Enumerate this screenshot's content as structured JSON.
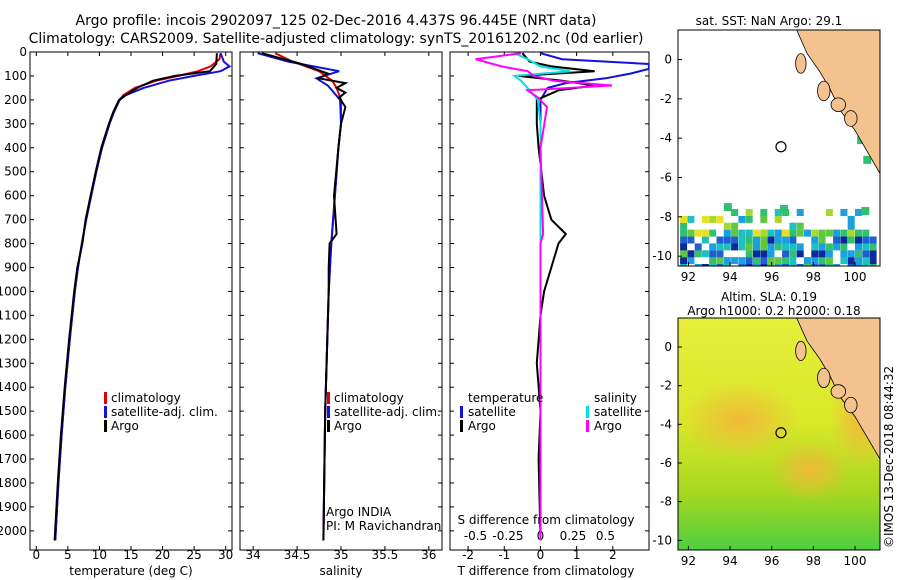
{
  "title": {
    "line1": "Argo profile: incois 2902097_125 02-Dec-2016 4.437S 96.445E (NRT data)",
    "line2": "Climatology: CARS2009. Satellite-adjusted climatology: synTS_20161202.nc (0d earlier)"
  },
  "colors": {
    "climatology": "#e00000",
    "satellite": "#1010e0",
    "argo": "#000000",
    "sat_salinity": "#00e0e0",
    "argo_salinity": "#ff00ff",
    "land": "#f3c28f"
  },
  "chart_data": [
    {
      "id": "temperature",
      "type": "line",
      "xlabel": "temperature (deg C)",
      "ylabel": "",
      "xlim": [
        -1,
        31
      ],
      "ylim": [
        2080,
        0
      ],
      "xticks": [
        0,
        5,
        10,
        15,
        20,
        25,
        30
      ],
      "yticks": [
        0,
        100,
        200,
        300,
        400,
        500,
        600,
        700,
        800,
        900,
        1000,
        1100,
        1200,
        1300,
        1400,
        1500,
        1600,
        1700,
        1800,
        1900,
        2000
      ],
      "legend": [
        "climatology",
        "satellite-adj. clim.",
        "Argo"
      ],
      "series": [
        {
          "name": "climatology",
          "depth": [
            5,
            30,
            60,
            80,
            100,
            120,
            150,
            180,
            200,
            250,
            300,
            400,
            500,
            600,
            700,
            800,
            900,
            1000,
            1200,
            1400,
            1600,
            1800,
            2040
          ],
          "values": [
            29.2,
            29.0,
            27.6,
            25.6,
            22.5,
            19.0,
            15.6,
            13.8,
            13.2,
            12.3,
            11.6,
            10.4,
            9.5,
            8.7,
            7.9,
            7.2,
            6.6,
            6.1,
            5.3,
            4.6,
            4.0,
            3.5,
            3.0
          ]
        },
        {
          "name": "satellite-adj. clim.",
          "depth": [
            5,
            40,
            60,
            80,
            100,
            120,
            150,
            180,
            200,
            250,
            300,
            400,
            500,
            600,
            700,
            800,
            900,
            1000,
            1200,
            1400,
            1600,
            1800,
            2040
          ],
          "values": [
            29.2,
            29.7,
            30.6,
            29.2,
            25.0,
            21.0,
            17.0,
            14.2,
            13.2,
            12.3,
            11.6,
            10.4,
            9.5,
            8.7,
            7.9,
            7.2,
            6.6,
            6.1,
            5.3,
            4.6,
            4.0,
            3.5,
            3.0
          ]
        },
        {
          "name": "Argo",
          "depth": [
            5,
            50,
            80,
            100,
            120,
            150,
            175,
            190,
            200,
            250,
            300,
            400,
            500,
            600,
            700,
            800,
            900,
            1000,
            1200,
            1400,
            1600,
            1800,
            2040
          ],
          "values": [
            28.6,
            28.5,
            27.5,
            22.0,
            18.5,
            16.0,
            14.5,
            13.6,
            13.1,
            12.2,
            11.5,
            10.3,
            9.4,
            8.6,
            7.8,
            7.3,
            6.5,
            6.0,
            5.2,
            4.5,
            3.9,
            3.4,
            2.9
          ]
        }
      ]
    },
    {
      "id": "salinity",
      "type": "line",
      "xlabel": "salinity",
      "ylabel": "",
      "xlim": [
        33.85,
        36.15
      ],
      "ylim": [
        2080,
        0
      ],
      "xticks": [
        34,
        34.5,
        35,
        35.5,
        36
      ],
      "legend": [
        "climatology",
        "satellite-adj. clim.",
        "Argo"
      ],
      "series": [
        {
          "name": "climatology",
          "depth": [
            5,
            40,
            80,
            120,
            150,
            200,
            300,
            400,
            600,
            800,
            1000,
            1500,
            2040
          ],
          "values": [
            34.25,
            34.45,
            34.75,
            34.9,
            34.95,
            35.0,
            35.0,
            34.97,
            34.93,
            34.89,
            34.86,
            34.82,
            34.8
          ]
        },
        {
          "name": "satellite-adj. clim.",
          "depth": [
            5,
            40,
            80,
            110,
            140,
            200,
            300,
            400,
            600,
            800,
            1000,
            1500,
            2040
          ],
          "values": [
            34.05,
            34.4,
            34.98,
            34.72,
            34.85,
            34.99,
            35.0,
            34.97,
            34.93,
            34.89,
            34.86,
            34.82,
            34.8
          ]
        },
        {
          "name": "Argo",
          "depth": [
            5,
            50,
            90,
            110,
            130,
            150,
            170,
            190,
            230,
            300,
            400,
            600,
            760,
            800,
            900,
            1000,
            1500,
            2040
          ],
          "values": [
            34.1,
            34.55,
            34.85,
            34.75,
            35.05,
            34.95,
            35.05,
            34.98,
            35.05,
            35.0,
            34.97,
            34.92,
            34.95,
            34.87,
            34.86,
            34.86,
            34.82,
            34.8
          ]
        }
      ]
    },
    {
      "id": "difference",
      "type": "line",
      "xlabel": "T difference from climatology",
      "secondary_xlabel": "S difference from climatology",
      "xlim": [
        -2.5,
        3
      ],
      "ylim": [
        2080,
        0
      ],
      "xticks": [
        -2,
        -1,
        0,
        1,
        2
      ],
      "secondary_xticks": [
        "-0.5",
        "-0.25",
        "0",
        "0.25",
        "0.5"
      ],
      "legend_left_title": "temperature",
      "legend_left": [
        "satellite",
        "Argo"
      ],
      "legend_right_title": "salinity",
      "legend_right": [
        "satellite",
        "Argo"
      ],
      "series": [
        {
          "name": "T satellite",
          "depth": [
            5,
            30,
            50,
            70,
            90,
            110,
            130,
            150,
            200,
            300,
            2040
          ],
          "values": [
            0,
            0.6,
            3.0,
            3.0,
            2.5,
            1.8,
            0.7,
            0.2,
            0,
            0,
            0
          ]
        },
        {
          "name": "T Argo",
          "depth": [
            5,
            40,
            60,
            80,
            100,
            120,
            140,
            160,
            180,
            200,
            300,
            400,
            600,
            700,
            760,
            800,
            900,
            1000,
            1100,
            1300,
            1500,
            1700,
            2040
          ],
          "values": [
            -0.5,
            -0.3,
            0.3,
            1.5,
            -0.6,
            0.6,
            1.5,
            0.5,
            0.2,
            -0.1,
            -0.1,
            -0.05,
            0.1,
            0.3,
            0.7,
            0.5,
            0.3,
            0.1,
            0,
            -0.1,
            0,
            -0.05,
            0
          ]
        },
        {
          "name": "S satellite",
          "depth": [
            5,
            30,
            60,
            80,
            100,
            120,
            150,
            200,
            300,
            400,
            600,
            800,
            1000,
            1500,
            2040
          ],
          "values": [
            -0.2,
            -0.1,
            0,
            0.23,
            -0.2,
            -0.15,
            -0.1,
            -0.02,
            0,
            0,
            0,
            0,
            0,
            0,
            0
          ]
        },
        {
          "name": "S Argo",
          "depth": [
            5,
            30,
            60,
            80,
            100,
            120,
            140,
            160,
            190,
            230,
            400,
            760,
            800,
            1000,
            1200,
            1500,
            1800,
            2040
          ],
          "values": [
            -0.15,
            -0.5,
            -0.3,
            -0.1,
            -0.05,
            0.1,
            0.55,
            -0.1,
            -0.02,
            0.05,
            0,
            0.02,
            0,
            0,
            0,
            0,
            0,
            0
          ]
        }
      ]
    }
  ],
  "annotations": {
    "institution": "Argo INDIA",
    "pi": "PI: M Ravichandran"
  },
  "maps": {
    "sst": {
      "title": "sat. SST: NaN Argo: 29.1",
      "xticks": [
        "92",
        "94",
        "96",
        "98",
        "100"
      ],
      "yticks": [
        "0",
        "-2",
        "-4",
        "-6",
        "-8",
        "-10"
      ],
      "lon_range": [
        91.5,
        101.2
      ],
      "lat_range": [
        -10.5,
        1.5
      ],
      "float_lon": 96.445,
      "float_lat": -4.437
    },
    "sla": {
      "title1": "Altim. SLA: 0.19",
      "title2": "Argo h1000: 0.2 h2000: 0.18",
      "xticks": [
        "92",
        "94",
        "96",
        "98",
        "100"
      ],
      "yticks": [
        "0",
        "-2",
        "-4",
        "-6",
        "-8",
        "-10"
      ],
      "lon_range": [
        91.5,
        101.2
      ],
      "lat_range": [
        -10.5,
        1.5
      ],
      "float_lon": 96.445,
      "float_lat": -4.437
    }
  },
  "footer": "©IMOS 13-Dec-2018 08:44:32"
}
